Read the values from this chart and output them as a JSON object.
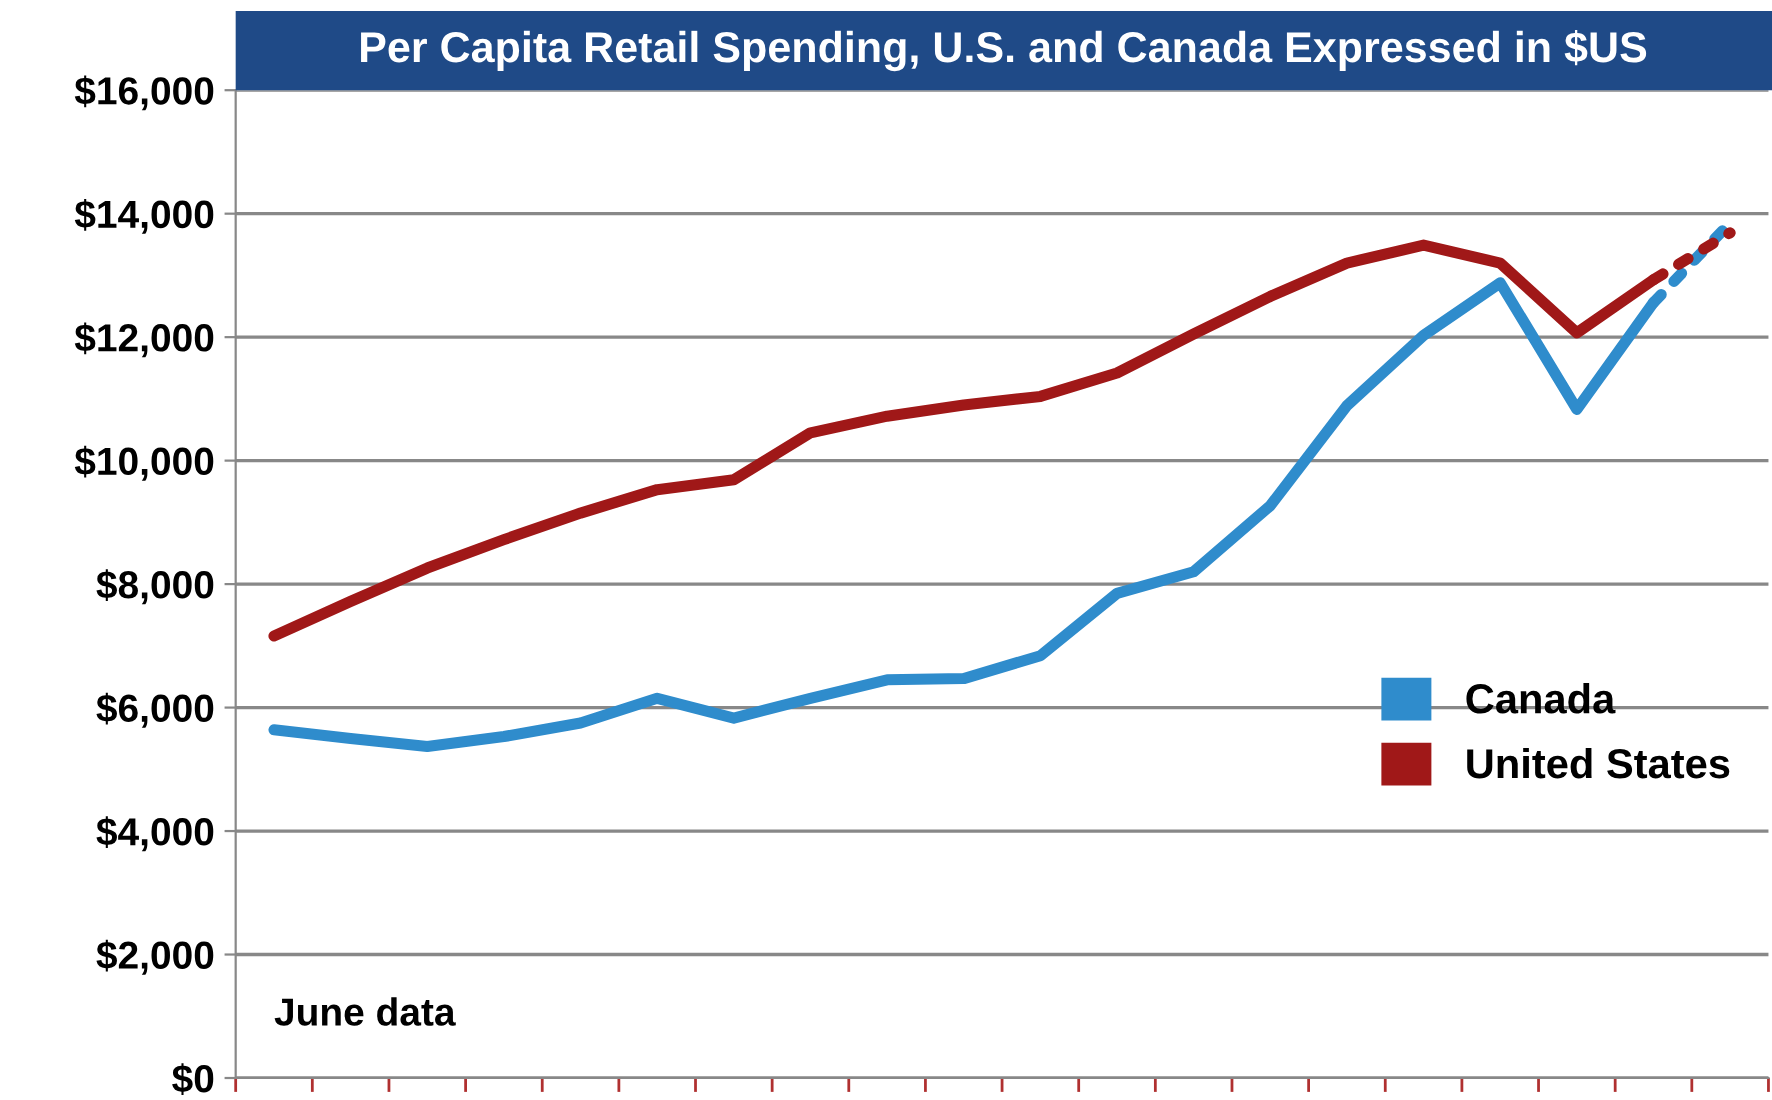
{
  "chart_data": {
    "type": "line",
    "title": "Per Capita Retail Spending, U.S. and Canada Expressed in $US",
    "categories": [
      null,
      null,
      null,
      null,
      null,
      null,
      null,
      null,
      null,
      null,
      null,
      null,
      null,
      null,
      null,
      null,
      null,
      null,
      null,
      null
    ],
    "series": [
      {
        "name": "Canada",
        "color": "#2f8ccc",
        "values": [
          5640,
          5500,
          5370,
          5530,
          5750,
          6150,
          5830,
          6150,
          6450,
          6470,
          6840,
          7850,
          8200,
          9270,
          10890,
          12030,
          12880,
          10830,
          12560,
          null
        ]
      },
      {
        "name": "United States",
        "color": "#a01818",
        "values": [
          7160,
          7720,
          8260,
          8720,
          9150,
          9530,
          9690,
          10450,
          10720,
          10900,
          11040,
          11420,
          12050,
          12660,
          13200,
          13490,
          13200,
          12070,
          12930,
          null
        ]
      },
      {
        "color": "#2f8ccc",
        "line_style": "dotted",
        "values": [
          null,
          null,
          null,
          null,
          null,
          null,
          null,
          null,
          null,
          null,
          null,
          null,
          null,
          null,
          null,
          null,
          null,
          null,
          12560,
          13850
        ]
      },
      {
        "color": "#a01818",
        "line_style": "dotted",
        "values": [
          null,
          null,
          null,
          null,
          null,
          null,
          null,
          null,
          null,
          null,
          null,
          null,
          null,
          null,
          null,
          null,
          null,
          null,
          12930,
          13690
        ]
      }
    ],
    "ylim": [
      0,
      16000
    ],
    "yticks": [
      {
        "value": 0,
        "label": "$0"
      },
      {
        "value": 2000,
        "label": "$2,000"
      },
      {
        "value": 4000,
        "label": "$4,000"
      },
      {
        "value": 6000,
        "label": "$6,000"
      },
      {
        "value": 8000,
        "label": "$8,000"
      },
      {
        "value": 10000,
        "label": "$10,000"
      },
      {
        "value": 12000,
        "label": "$12,000"
      },
      {
        "value": 14000,
        "label": "$14,000"
      },
      {
        "value": 16000,
        "label": "$16,000"
      }
    ],
    "grid": "y",
    "legend": "right",
    "line_style": "solid",
    "marker": "none",
    "annotations": [
      "June data"
    ]
  }
}
